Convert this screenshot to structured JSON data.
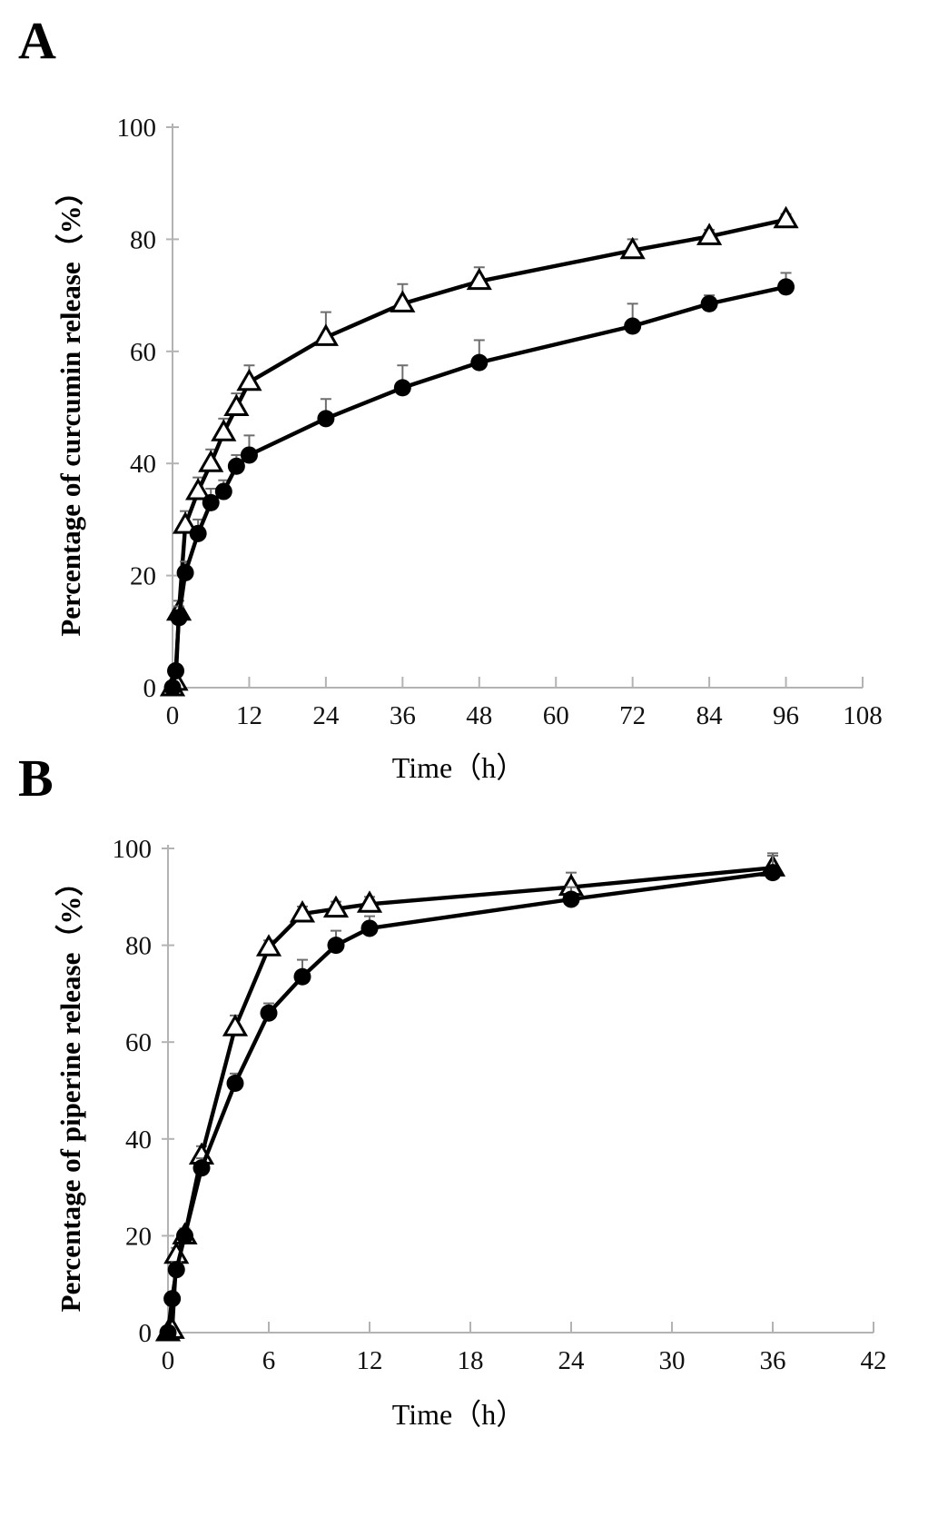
{
  "figure": {
    "background": "#ffffff",
    "series_line_color": "#000000",
    "axis_color": "#b3b3b3",
    "error_bar_color": "#6e6e6e",
    "tick_label_color": "#111111",
    "marker_open_fill": "#ffffff"
  },
  "panels": [
    {
      "letter": "A"
    },
    {
      "letter": "B"
    }
  ],
  "chart_data": [
    {
      "type": "line",
      "panel": "A",
      "title": "",
      "xlabel": "Time（h）",
      "ylabel": "Percentage of curcumin release（%）",
      "xlim": [
        0,
        108
      ],
      "ylim": [
        0,
        100
      ],
      "xticks": [
        0,
        12,
        24,
        36,
        48,
        60,
        72,
        84,
        96,
        108
      ],
      "yticks": [
        0,
        20,
        40,
        60,
        80,
        100
      ],
      "grid": false,
      "legend": "none",
      "error_bars": "upward",
      "series": [
        {
          "name": "open-triangle-series",
          "marker": "triangle-open",
          "x": [
            0,
            0.5,
            1,
            2,
            4,
            6,
            8,
            10,
            12,
            24,
            36,
            48,
            72,
            84,
            96
          ],
          "y": [
            0,
            1,
            13.5,
            29,
            35,
            40,
            45.5,
            50,
            54.5,
            62.5,
            68.5,
            72.5,
            78,
            80.5,
            83.5
          ],
          "yerr_up": [
            0,
            0.5,
            2,
            2.5,
            2.5,
            2.5,
            2.5,
            2.5,
            3,
            4.5,
            3.5,
            2.5,
            2,
            1.2,
            1
          ]
        },
        {
          "name": "filled-circle-series",
          "marker": "circle-filled",
          "x": [
            0,
            0.5,
            1,
            2,
            4,
            6,
            8,
            10,
            12,
            24,
            36,
            48,
            72,
            84,
            96
          ],
          "y": [
            0,
            3,
            12.5,
            20.5,
            27.5,
            33,
            35,
            39.5,
            41.5,
            48,
            53.5,
            58,
            64.5,
            68.5,
            71.5
          ],
          "yerr_up": [
            0,
            0.8,
            2,
            2,
            2.5,
            2.5,
            2,
            2,
            3.5,
            3.5,
            4,
            4,
            4,
            1.5,
            2.5
          ]
        }
      ]
    },
    {
      "type": "line",
      "panel": "B",
      "title": "",
      "xlabel": "Time（h）",
      "ylabel": "Percentage of piperine release（%）",
      "xlim": [
        0,
        42
      ],
      "ylim": [
        0,
        100
      ],
      "xticks": [
        0,
        6,
        12,
        18,
        24,
        30,
        36,
        42
      ],
      "yticks": [
        0,
        20,
        40,
        60,
        80,
        100
      ],
      "grid": false,
      "legend": "none",
      "error_bars": "upward",
      "series": [
        {
          "name": "open-triangle-series",
          "marker": "triangle-open",
          "x": [
            0,
            0.25,
            0.5,
            1,
            2,
            4,
            6,
            8,
            10,
            12,
            24,
            36
          ],
          "y": [
            0,
            0.5,
            16,
            20,
            36.5,
            63,
            79.5,
            86.5,
            87.5,
            88.5,
            92,
            96
          ],
          "yerr_up": [
            0,
            0.5,
            1.5,
            1.5,
            2,
            2.5,
            1.5,
            1.5,
            1.5,
            1.5,
            3,
            3
          ]
        },
        {
          "name": "filled-circle-series",
          "marker": "circle-filled",
          "x": [
            0,
            0.25,
            0.5,
            1,
            2,
            4,
            6,
            8,
            10,
            12,
            24,
            36
          ],
          "y": [
            0,
            7,
            13,
            20,
            34,
            51.5,
            66,
            73.5,
            80,
            83.5,
            89.5,
            95
          ],
          "yerr_up": [
            0,
            1,
            1.5,
            1.5,
            2,
            2,
            2,
            3.5,
            3,
            2.5,
            2.5,
            3.5
          ]
        }
      ]
    }
  ]
}
